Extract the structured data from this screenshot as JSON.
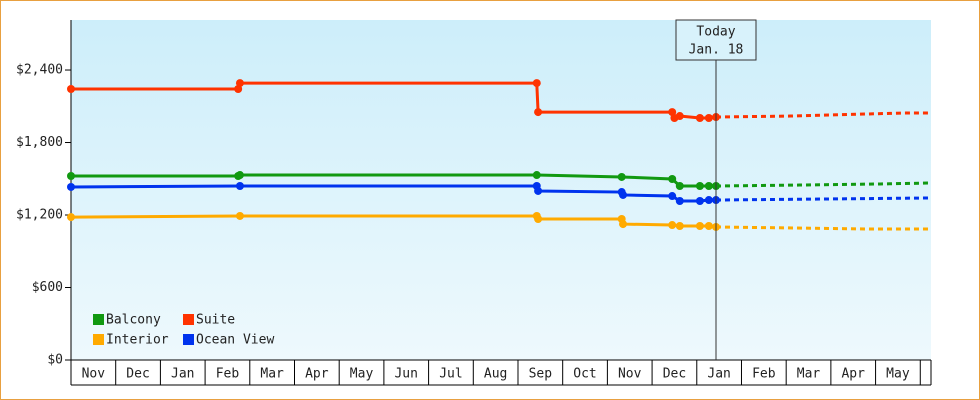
{
  "chart_data": {
    "type": "line",
    "categories": [
      "Nov",
      "Dec",
      "Jan",
      "Feb",
      "Mar",
      "Apr",
      "May",
      "Jun",
      "Jul",
      "Aug",
      "Sep",
      "Oct",
      "Nov",
      "Dec",
      "Jan",
      "Feb",
      "Mar",
      "Apr",
      "May",
      null
    ],
    "xlim": [
      0,
      19.24
    ],
    "ylim": [
      0,
      2814
    ],
    "yticks": [
      {
        "value": 0,
        "label": "$0"
      },
      {
        "value": 600,
        "label": "$600"
      },
      {
        "value": 1200,
        "label": "$1,200"
      },
      {
        "value": 1800,
        "label": "$1,800"
      },
      {
        "value": 2400,
        "label": "$2,400"
      }
    ],
    "legend": "bottom-left",
    "today": {
      "x": 14.43,
      "label": [
        "Today",
        "Jan. 18"
      ]
    },
    "series": [
      {
        "name": "Balcony",
        "color": "#119911",
        "x": [
          0,
          3.74,
          3.78,
          10.42,
          12.32,
          13.45,
          13.62,
          14.07,
          14.27,
          14.43
        ],
        "values": [
          1523,
          1523,
          1531,
          1531,
          1515,
          1498,
          1440,
          1440,
          1440,
          1440
        ],
        "forecast": {
          "x": [
            14.43,
            16.3,
            18.1,
            19.24
          ],
          "values": [
            1440,
            1448,
            1457,
            1465
          ]
        }
      },
      {
        "name": "Suite",
        "color": "#ff3300",
        "x": [
          0,
          3.74,
          3.78,
          10.42,
          10.45,
          13.45,
          13.5,
          13.62,
          14.07,
          14.27,
          14.43
        ],
        "values": [
          2243,
          2243,
          2292,
          2292,
          2052,
          2052,
          2003,
          2019,
          2003,
          2003,
          2011
        ],
        "forecast": {
          "x": [
            14.43,
            16.1,
            18.6,
            19.24
          ],
          "values": [
            2011,
            2019,
            2044,
            2044
          ]
        }
      },
      {
        "name": "Interior",
        "color": "#ffaa00",
        "x": [
          0,
          3.78,
          10.42,
          10.45,
          12.32,
          12.35,
          13.45,
          13.62,
          14.07,
          14.27,
          14.43
        ],
        "values": [
          1183,
          1192,
          1192,
          1167,
          1167,
          1125,
          1117,
          1109,
          1109,
          1109,
          1101
        ],
        "forecast": {
          "x": [
            14.43,
            17.9,
            19.24
          ],
          "values": [
            1101,
            1084,
            1084
          ]
        }
      },
      {
        "name": "Ocean View",
        "color": "#0033ee",
        "x": [
          0,
          3.78,
          10.42,
          10.45,
          12.32,
          12.35,
          13.45,
          13.62,
          14.07,
          14.27,
          14.43
        ],
        "values": [
          1432,
          1440,
          1440,
          1399,
          1390,
          1366,
          1357,
          1316,
          1316,
          1324,
          1324
        ],
        "forecast": {
          "x": [
            14.43,
            19.24
          ],
          "values": [
            1324,
            1341
          ]
        }
      }
    ]
  }
}
